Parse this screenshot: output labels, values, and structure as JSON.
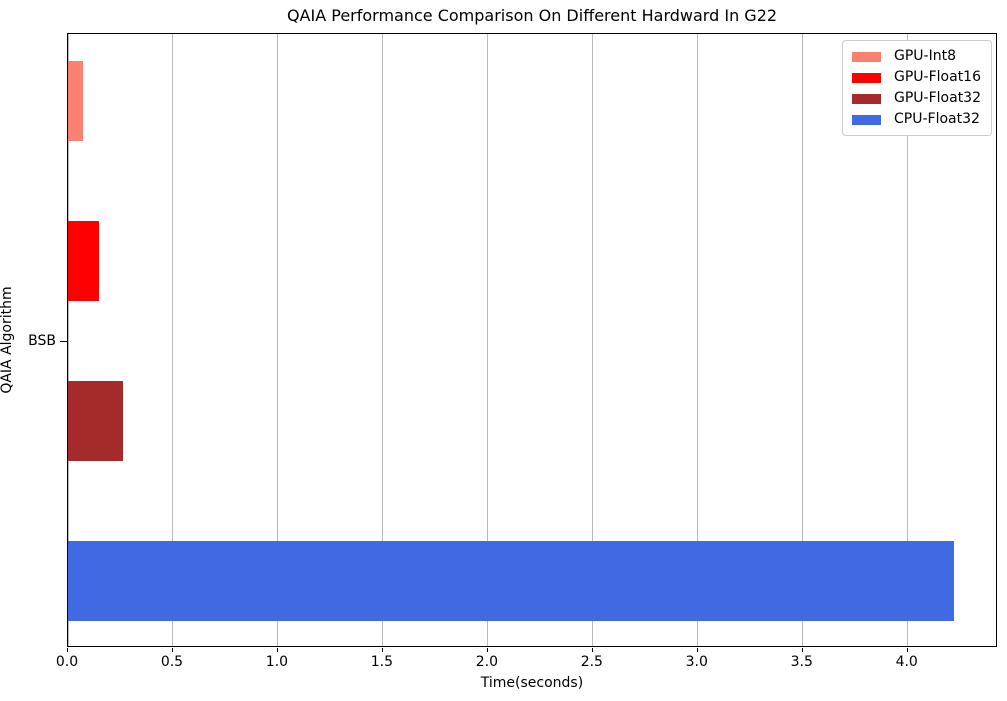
{
  "chart_data": {
    "type": "bar",
    "orientation": "horizontal",
    "title": "QAIA Performance Comparison On Different Hardward In G22",
    "xlabel": "Time(seconds)",
    "ylabel": "QAIA Algorithm",
    "categories": [
      "BSB"
    ],
    "series": [
      {
        "name": "GPU-Int8",
        "color": "#FA8072",
        "values": [
          0.07
        ]
      },
      {
        "name": "GPU-Float16",
        "color": "#FF0000",
        "values": [
          0.15
        ]
      },
      {
        "name": "GPU-Float32",
        "color": "#A52A2A",
        "values": [
          0.26
        ]
      },
      {
        "name": "CPU-Float32",
        "color": "#4169E1",
        "values": [
          4.22
        ]
      }
    ],
    "xlim": [
      0,
      4.43
    ],
    "xticks": [
      0.0,
      0.5,
      1.0,
      1.5,
      2.0,
      2.5,
      3.0,
      3.5,
      4.0
    ],
    "xtick_decimals": 1,
    "grid": true,
    "grid_color": "#b9b9b9",
    "legend_position": "upper-right",
    "background_color": "#ffffff",
    "spine_color": "#000000"
  }
}
